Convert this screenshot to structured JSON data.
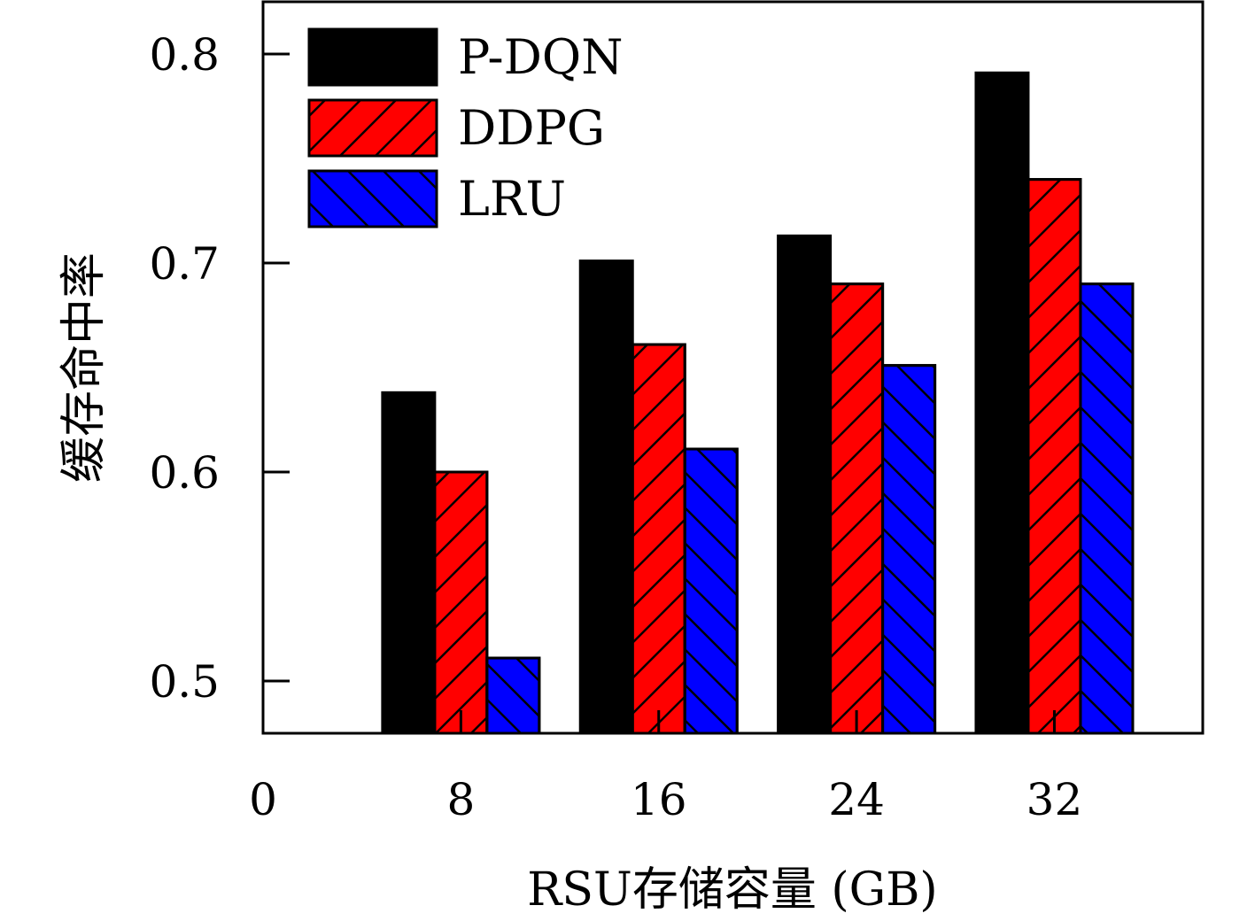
{
  "chart_data": {
    "type": "bar",
    "xlabel": "RSU存储容量 (GB)",
    "ylabel": "缓存命中率",
    "x_ticks": [
      "0",
      "8",
      "16",
      "24",
      "32"
    ],
    "y_ticks": [
      "0.5",
      "0.6",
      "0.7",
      "0.8"
    ],
    "y_tick_values": [
      0.5,
      0.6,
      0.7,
      0.8
    ],
    "x_tick_values": [
      0,
      8,
      16,
      24,
      32
    ],
    "categories": [
      8,
      16,
      24,
      32
    ],
    "xlim": [
      0,
      38
    ],
    "ylim": [
      0.475,
      0.825
    ],
    "legend_position": "top-left",
    "grid": false,
    "series": [
      {
        "name": "P-DQN",
        "values": [
          0.638,
          0.701,
          0.713,
          0.791
        ],
        "color": "#000000",
        "hatch": "none"
      },
      {
        "name": "DDPG",
        "values": [
          0.6,
          0.661,
          0.69,
          0.74
        ],
        "color": "#ff0000",
        "hatch": "forward-diagonal"
      },
      {
        "name": "LRU",
        "values": [
          0.511,
          0.611,
          0.651,
          0.69
        ],
        "color": "#0000ff",
        "hatch": "back-diagonal"
      }
    ]
  }
}
